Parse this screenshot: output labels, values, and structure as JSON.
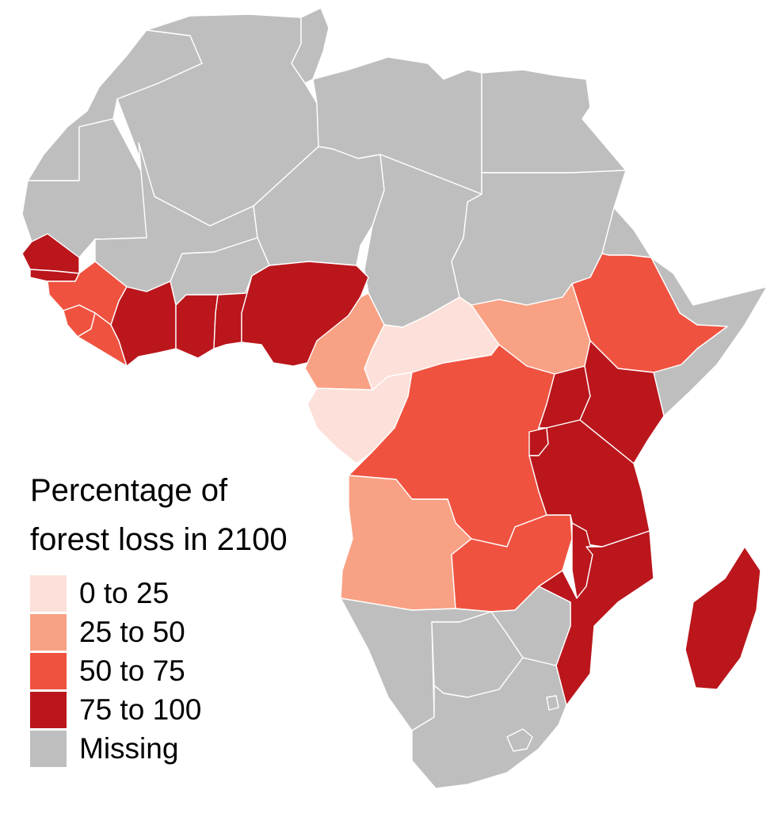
{
  "legend": {
    "title_line1": "Percentage of",
    "title_line2": "forest loss in 2100",
    "items": [
      {
        "label": "0 to 25",
        "color": "#FDE0D9"
      },
      {
        "label": "25 to 50",
        "color": "#F9A184"
      },
      {
        "label": "50 to 75",
        "color": "#F05240"
      },
      {
        "label": "75 to 100",
        "color": "#BA161C"
      },
      {
        "label": "Missing",
        "color": "#BEBEBE"
      }
    ]
  },
  "regions": [
    {
      "name": "Morocco / Western Sahara",
      "class": "Missing"
    },
    {
      "name": "Algeria",
      "class": "Missing"
    },
    {
      "name": "Tunisia",
      "class": "Missing"
    },
    {
      "name": "Libya",
      "class": "Missing"
    },
    {
      "name": "Egypt",
      "class": "Missing"
    },
    {
      "name": "Mauritania",
      "class": "Missing"
    },
    {
      "name": "Mali",
      "class": "Missing"
    },
    {
      "name": "Niger",
      "class": "Missing"
    },
    {
      "name": "Chad",
      "class": "Missing"
    },
    {
      "name": "Sudan",
      "class": "Missing"
    },
    {
      "name": "Eritrea",
      "class": "Missing"
    },
    {
      "name": "Burkina Faso",
      "class": "Missing"
    },
    {
      "name": "Djibouti / Somalia",
      "class": "Missing"
    },
    {
      "name": "Senegal",
      "class": "75 to 100"
    },
    {
      "name": "Guinea-Bissau",
      "class": "75 to 100"
    },
    {
      "name": "Guinea",
      "class": "50 to 75"
    },
    {
      "name": "Sierra Leone",
      "class": "50 to 75"
    },
    {
      "name": "Liberia",
      "class": "50 to 75"
    },
    {
      "name": "Côte d'Ivoire",
      "class": "75 to 100"
    },
    {
      "name": "Ghana",
      "class": "75 to 100"
    },
    {
      "name": "Togo / Benin",
      "class": "75 to 100"
    },
    {
      "name": "Nigeria",
      "class": "75 to 100"
    },
    {
      "name": "Cameroon",
      "class": "25 to 50"
    },
    {
      "name": "Central African Republic",
      "class": "0 to 25"
    },
    {
      "name": "Gabon / Rep. Congo / Eq. Guinea",
      "class": "0 to 25"
    },
    {
      "name": "South Sudan",
      "class": "25 to 50"
    },
    {
      "name": "Ethiopia",
      "class": "50 to 75"
    },
    {
      "name": "DR Congo",
      "class": "50 to 75"
    },
    {
      "name": "Uganda",
      "class": "75 to 100"
    },
    {
      "name": "Kenya",
      "class": "75 to 100"
    },
    {
      "name": "Rwanda / Burundi",
      "class": "75 to 100"
    },
    {
      "name": "Tanzania",
      "class": "75 to 100"
    },
    {
      "name": "Angola",
      "class": "25 to 50"
    },
    {
      "name": "Zambia",
      "class": "50 to 75"
    },
    {
      "name": "Malawi",
      "class": "75 to 100"
    },
    {
      "name": "Mozambique",
      "class": "75 to 100"
    },
    {
      "name": "Madagascar",
      "class": "75 to 100"
    },
    {
      "name": "Namibia",
      "class": "Missing"
    },
    {
      "name": "Botswana",
      "class": "Missing"
    },
    {
      "name": "Zimbabwe",
      "class": "Missing"
    },
    {
      "name": "South Africa",
      "class": "Missing"
    },
    {
      "name": "Lesotho",
      "class": "Missing"
    },
    {
      "name": "Eswatini",
      "class": "Missing"
    }
  ]
}
